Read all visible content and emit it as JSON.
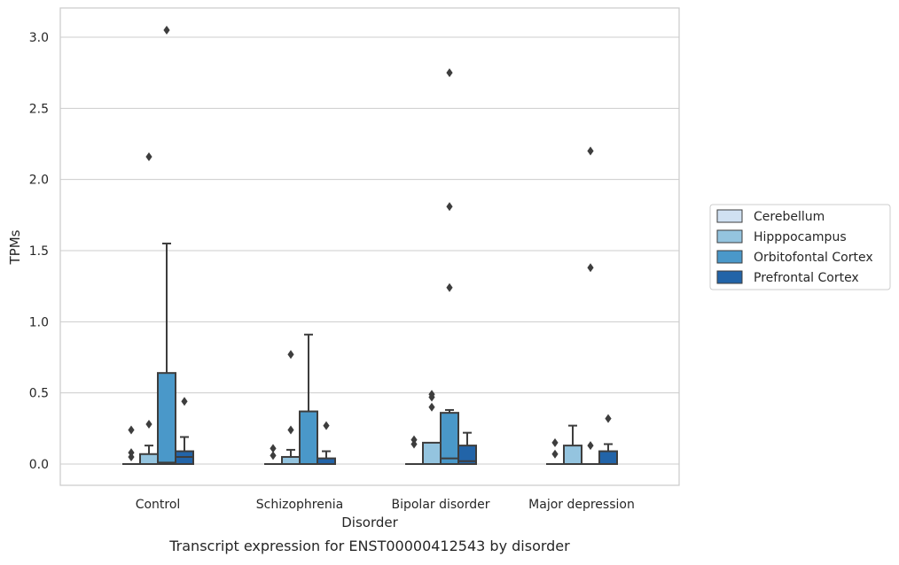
{
  "chart_data": {
    "type": "box",
    "caption": "Transcript expression for ENST00000412543 by disorder",
    "xlabel": "Disorder",
    "ylabel": "TPMs",
    "ylim": [
      -0.15,
      3.22
    ],
    "yticks": [
      0.0,
      0.5,
      1.0,
      1.5,
      2.0,
      2.5,
      3.0
    ],
    "ytick_labels": [
      "0.0",
      "0.5",
      "1.0",
      "1.5",
      "2.0",
      "2.5",
      "3.0"
    ],
    "grid": "horizontal",
    "legend_placement": "right-outside",
    "categories": [
      "Control",
      "Schizophrenia",
      "Bipolar disorder",
      "Major depression"
    ],
    "series": [
      {
        "name": "Cerebellum",
        "color": "#d0e1f2",
        "boxes": [
          {
            "q1": 0.0,
            "median": 0.0,
            "q3": 0.0,
            "whisker_low": 0.0,
            "whisker_high": 0.0,
            "outliers": [
              0.05,
              0.08,
              0.24
            ]
          },
          {
            "q1": 0.0,
            "median": 0.0,
            "q3": 0.0,
            "whisker_low": 0.0,
            "whisker_high": 0.0,
            "outliers": [
              0.06,
              0.11
            ]
          },
          {
            "q1": 0.0,
            "median": 0.0,
            "q3": 0.0,
            "whisker_low": 0.0,
            "whisker_high": 0.0,
            "outliers": [
              0.14,
              0.17
            ]
          },
          {
            "q1": 0.0,
            "median": 0.0,
            "q3": 0.0,
            "whisker_low": 0.0,
            "whisker_high": 0.0,
            "outliers": [
              0.07,
              0.15
            ]
          }
        ]
      },
      {
        "name": "Hipppocampus",
        "color": "#94c4df",
        "boxes": [
          {
            "q1": 0.0,
            "median": 0.0,
            "q3": 0.07,
            "whisker_low": 0.0,
            "whisker_high": 0.13,
            "outliers": [
              0.28,
              2.16
            ]
          },
          {
            "q1": 0.0,
            "median": 0.0,
            "q3": 0.05,
            "whisker_low": 0.0,
            "whisker_high": 0.1,
            "outliers": [
              0.24,
              0.77
            ]
          },
          {
            "q1": 0.0,
            "median": 0.0,
            "q3": 0.15,
            "whisker_low": 0.0,
            "whisker_high": 0.15,
            "outliers": [
              0.4,
              0.47,
              0.49
            ]
          },
          {
            "q1": 0.0,
            "median": 0.0,
            "q3": 0.13,
            "whisker_low": 0.0,
            "whisker_high": 0.27,
            "outliers": []
          }
        ]
      },
      {
        "name": "Orbitofontal Cortex",
        "color": "#4a98c9",
        "boxes": [
          {
            "q1": 0.0,
            "median": 0.01,
            "q3": 0.64,
            "whisker_low": 0.0,
            "whisker_high": 1.55,
            "outliers": [
              3.05
            ]
          },
          {
            "q1": 0.0,
            "median": 0.0,
            "q3": 0.37,
            "whisker_low": 0.0,
            "whisker_high": 0.91,
            "outliers": []
          },
          {
            "q1": 0.0,
            "median": 0.04,
            "q3": 0.36,
            "whisker_low": 0.0,
            "whisker_high": 0.38,
            "outliers": [
              1.24,
              1.81,
              2.75
            ]
          },
          {
            "q1": 0.0,
            "median": 0.0,
            "q3": 0.0,
            "whisker_low": 0.0,
            "whisker_high": 0.0,
            "outliers": [
              0.13,
              1.38,
              2.2
            ]
          }
        ]
      },
      {
        "name": "Prefrontal Cortex",
        "color": "#2264a8",
        "boxes": [
          {
            "q1": 0.0,
            "median": 0.05,
            "q3": 0.09,
            "whisker_low": 0.0,
            "whisker_high": 0.19,
            "outliers": [
              0.44
            ]
          },
          {
            "q1": 0.0,
            "median": 0.0,
            "q3": 0.04,
            "whisker_low": 0.0,
            "whisker_high": 0.09,
            "outliers": [
              0.27
            ]
          },
          {
            "q1": 0.0,
            "median": 0.02,
            "q3": 0.13,
            "whisker_low": 0.0,
            "whisker_high": 0.22,
            "outliers": []
          },
          {
            "q1": 0.0,
            "median": 0.0,
            "q3": 0.09,
            "whisker_low": 0.0,
            "whisker_high": 0.14,
            "outliers": [
              0.32
            ]
          }
        ]
      }
    ]
  }
}
